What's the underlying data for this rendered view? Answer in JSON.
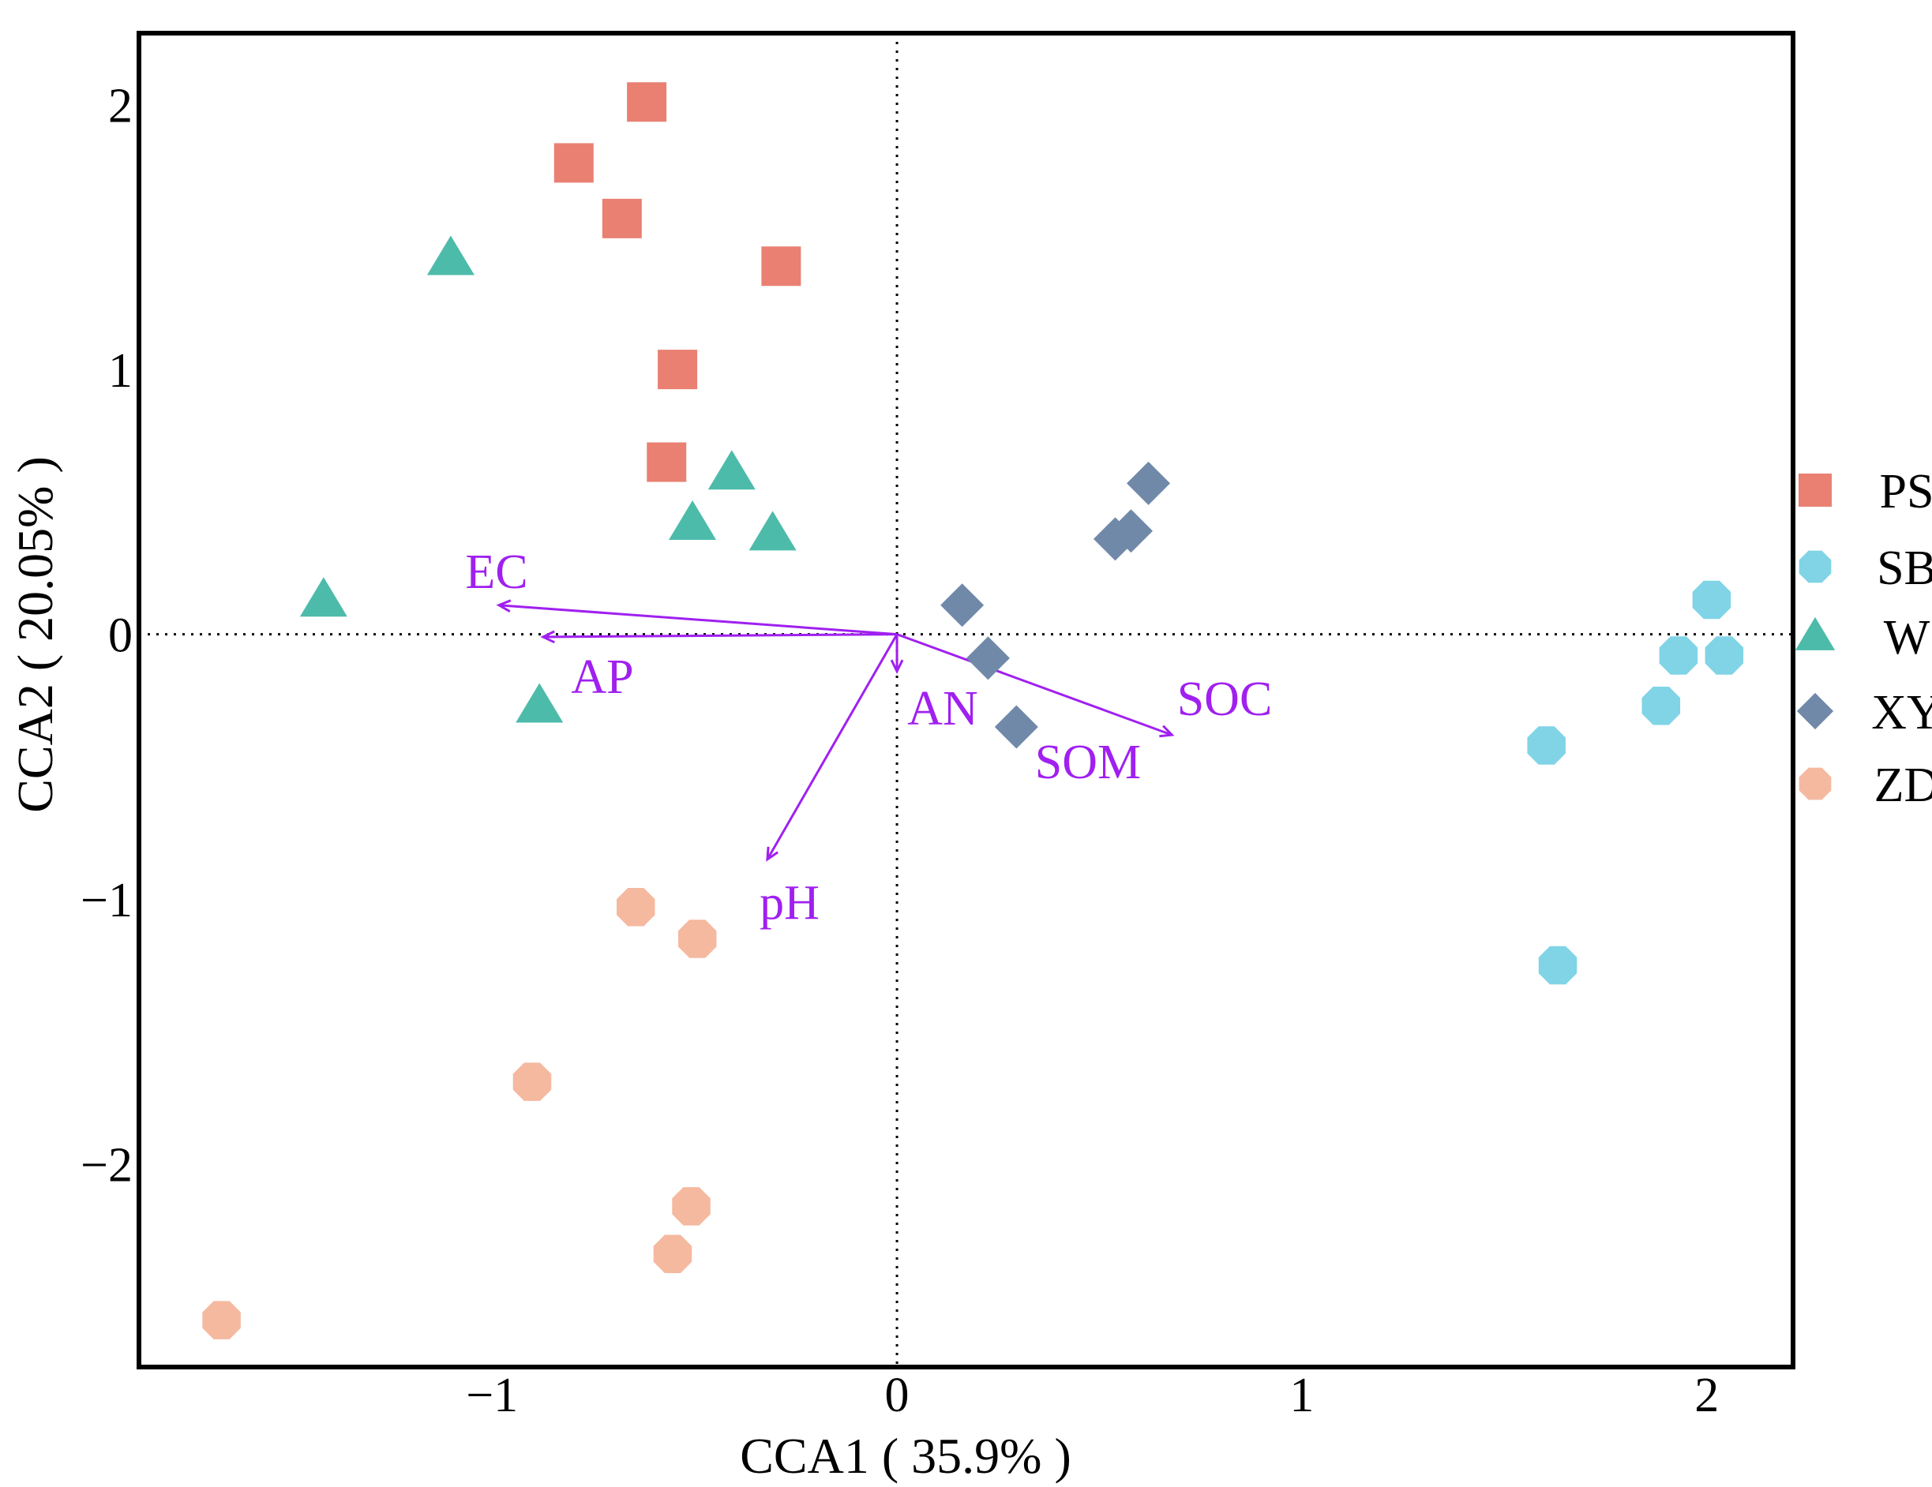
{
  "chart_data": {
    "type": "scatter",
    "title": "",
    "xlabel": "CCA1 ( 35.9% )",
    "ylabel": "CCA2 ( 20.05% )",
    "xlim": [
      -1.872,
      2.213
    ],
    "ylim": [
      -2.767,
      2.27
    ],
    "xticks": [
      {
        "value": -1,
        "label": "−1"
      },
      {
        "value": 0,
        "label": "0"
      },
      {
        "value": 1,
        "label": "1"
      },
      {
        "value": 2,
        "label": "2"
      }
    ],
    "yticks": [
      {
        "value": 2,
        "label": "2"
      },
      {
        "value": 1,
        "label": "1"
      },
      {
        "value": 0,
        "label": "0"
      },
      {
        "value": -1,
        "label": "−1"
      },
      {
        "value": -2,
        "label": "−2"
      }
    ],
    "grid": false,
    "reference_lines": {
      "x": 0,
      "y": 0,
      "style": "dotted"
    },
    "legend": {
      "placement": "right"
    },
    "series": [
      {
        "name": "PS",
        "marker": "square",
        "color": "#E98072",
        "points": [
          [
            -0.618,
            2.01
          ],
          [
            -0.798,
            1.78
          ],
          [
            -0.679,
            1.57
          ],
          [
            -0.286,
            1.39
          ],
          [
            -0.542,
            1.0
          ],
          [
            -0.569,
            0.65
          ]
        ]
      },
      {
        "name": "SB",
        "marker": "octagon",
        "color": "#80D4E6",
        "points": [
          [
            2.012,
            0.13
          ],
          [
            1.93,
            -0.08
          ],
          [
            2.043,
            -0.08
          ],
          [
            1.887,
            -0.27
          ],
          [
            1.604,
            -0.42
          ],
          [
            1.632,
            -1.25
          ]
        ]
      },
      {
        "name": "W",
        "marker": "triangle",
        "color": "#4DBBAA",
        "points": [
          [
            -1.102,
            1.42
          ],
          [
            -0.408,
            0.61
          ],
          [
            -0.505,
            0.42
          ],
          [
            -0.307,
            0.38
          ],
          [
            -1.416,
            0.13
          ],
          [
            -0.883,
            -0.27
          ]
        ]
      },
      {
        "name": "XY",
        "marker": "diamond",
        "color": "#7189A9",
        "points": [
          [
            0.621,
            0.57
          ],
          [
            0.578,
            0.39
          ],
          [
            0.539,
            0.36
          ],
          [
            0.161,
            0.11
          ],
          [
            0.225,
            -0.09
          ],
          [
            0.295,
            -0.35
          ]
        ]
      },
      {
        "name": "ZD",
        "marker": "octagon",
        "color": "#F5B9A0",
        "points": [
          [
            -0.645,
            -1.03
          ],
          [
            -0.493,
            -1.15
          ],
          [
            -0.901,
            -1.69
          ],
          [
            -0.508,
            -2.16
          ],
          [
            -0.554,
            -2.34
          ],
          [
            -1.668,
            -2.59
          ]
        ]
      }
    ],
    "vectors": {
      "color": "#A020F0",
      "items": [
        {
          "name": "EC",
          "x": -0.983,
          "y": 0.11
        },
        {
          "name": "AP",
          "x": -0.874,
          "y": -0.01
        },
        {
          "name": "AN",
          "x": 0.0,
          "y": -0.14
        },
        {
          "name": "SOC",
          "x": 0.679,
          "y": -0.38
        },
        {
          "name": "SOM",
          "x": 0.679,
          "y": -0.38
        },
        {
          "name": "pH",
          "x": -0.32,
          "y": -0.85
        }
      ]
    }
  }
}
